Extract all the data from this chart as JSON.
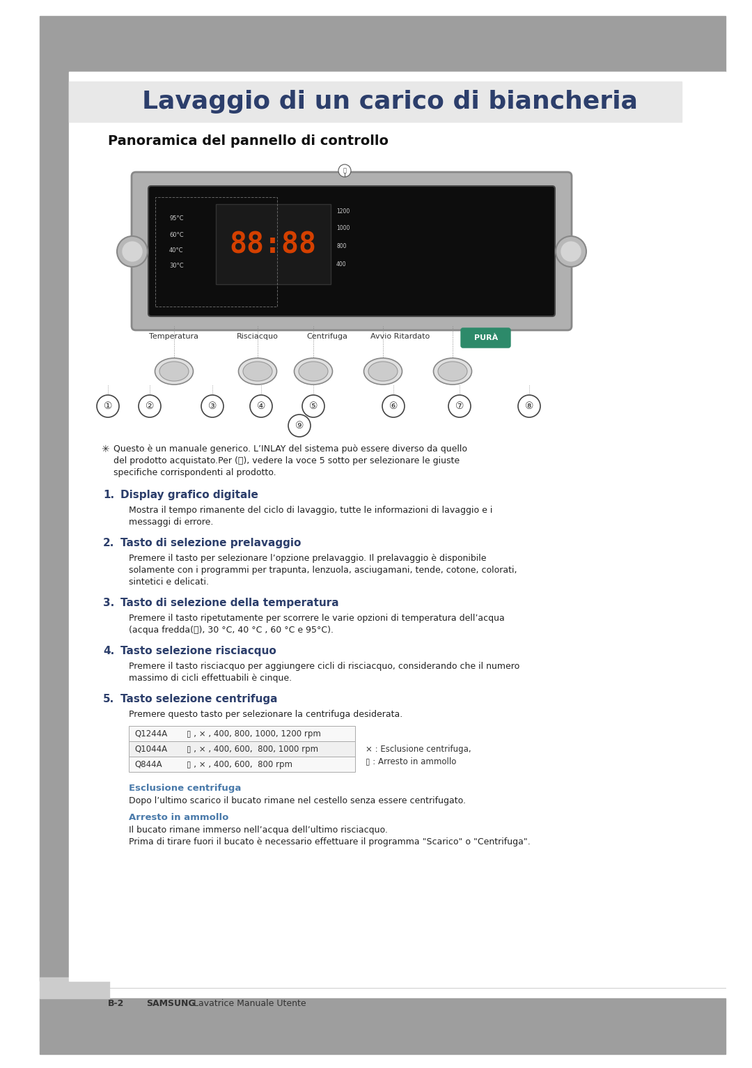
{
  "title": "Lavaggio di un carico di biancheria",
  "title_fontsize": 26,
  "title_color": "#2c3e6b",
  "bg_color": "#ffffff",
  "header_bg": "#999999",
  "sidebar_bg": "#aaaaaa",
  "sidebar_light": "#cccccc",
  "section_title": "Panoramica del pannello di controllo",
  "section_title_fontsize": 14,
  "section_title_color": "#111111",
  "heading_color": "#2c3e6b",
  "body_color": "#222222",
  "subheading_color": "#4a7aaa",
  "note_symbol": "✱",
  "note_text_line1": "Questo è un manuale generico. L’INLAY del sistema può essere diverso da quello",
  "note_text_line2": "del prodotto acquistato.Per (Ⓜ), vedere la voce 5 sotto per selezionare le giuste",
  "note_text_line3": "specifiche corrispondenti al prodotto.",
  "items": [
    {
      "number": "1.",
      "heading": "Display grafico digitale",
      "body_lines": [
        "Mostra il tempo rimanente del ciclo di lavaggio, tutte le informazioni di lavaggio e i",
        "messaggi di errore."
      ]
    },
    {
      "number": "2.",
      "heading": "Tasto di selezione prelavaggio",
      "body_lines": [
        "Premere il tasto per selezionare l’opzione prelavaggio. Il prelavaggio è disponibile",
        "solamente con i programmi per trapunta, lenzuola, asciugamani, tende, cotone, colorati,",
        "sintetici e delicati."
      ]
    },
    {
      "number": "3.",
      "heading": "Tasto di selezione della temperatura",
      "body_lines": [
        "Premere il tasto ripetutamente per scorrere le varie opzioni di temperatura dell’acqua",
        "(acqua fredda(内), 30 °C, 40 °C , 60 °C e 95°C)."
      ]
    },
    {
      "number": "4.",
      "heading": "Tasto selezione risciacquo",
      "body_lines": [
        "Premere il tasto risciacquo per aggiungere cicli di risciacquo, considerando che il numero",
        "massimo di cicli effettuabili è cinque."
      ]
    },
    {
      "number": "5.",
      "heading": "Tasto selezione centrifuga",
      "body_lines": [
        "Premere questo tasto per selezionare la centrifuga desiderata."
      ]
    }
  ],
  "table_rows": [
    [
      "Q1244A",
      "▯ , ⨯ , 400, 800, 1000, 1200 rpm"
    ],
    [
      "Q1044A",
      "▯ , ⨯ , 400, 600,  800, 1000 rpm"
    ],
    [
      "Q844A",
      "▯ , ⨯ , 400, 600,  800 rpm"
    ]
  ],
  "table_note_line1": "⨯ : Esclusione centrifuga,",
  "table_note_line2": "▯ : Arresto in ammollo",
  "sub_heading1": "Esclusione centrifuga",
  "sub_body1": "Dopo l’ultimo scarico il bucato rimane nel cestello senza essere centrifugato.",
  "sub_heading2": "Arresto in ammollo",
  "sub_body2_line1": "Il bucato rimane immerso nell’acqua dell’ultimo risciacquo.",
  "sub_body2_line2": "Prima di tirare fuori il bucato è necessario effettuare il programma \"Scarico\" o \"Centrifuga\".",
  "footer_page": "B-2",
  "footer_brand": "SAMSUNG",
  "footer_text": "Lavatrice Manuale Utente"
}
